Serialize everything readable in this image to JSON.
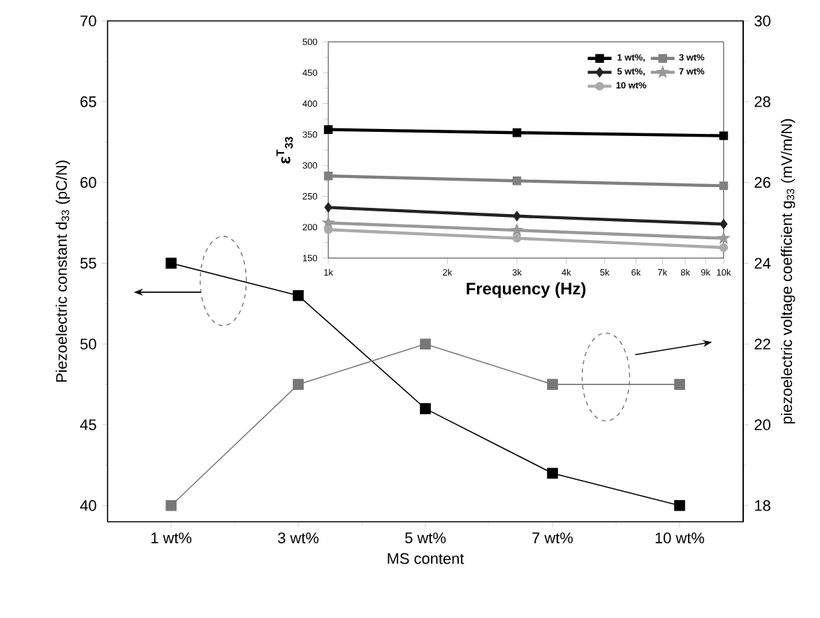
{
  "chart_data": [
    {
      "type": "line",
      "xlabel": "MS content",
      "ylabel": "Piezoelectric constant d$_{33}$ (pC/N)",
      "y2label": "piezoelectric voltage coefficient g$_{33}$ (mV/m/N)",
      "categories": [
        "1 wt%",
        "3 wt%",
        "5 wt%",
        "7 wt%",
        "10 wt%"
      ],
      "series": [
        {
          "color": "#000000",
          "values": [
            55,
            53,
            46,
            42,
            40
          ]
        },
        {
          "color": "#777777",
          "values": [
            18,
            21,
            22,
            21,
            21
          ],
          "axis": "y2"
        }
      ],
      "ylim": [
        39,
        70
      ],
      "yticks": [
        40,
        45,
        50,
        55,
        60,
        65,
        70
      ],
      "y2lim": [
        17.6,
        30
      ],
      "y2ticks": [
        18,
        20,
        22,
        24,
        26,
        28,
        30
      ],
      "marker": "square",
      "line_style": "solid",
      "legend": false
    },
    {
      "type": "line",
      "xlabel": "Frequency (Hz)",
      "ylabel": "ε$^{T}$$_{33}$",
      "log": "x",
      "x": [
        1000,
        3000,
        10000
      ],
      "series": [
        {
          "name": "1 wt%,",
          "color": "#000000",
          "marker": "square",
          "values": [
            358,
            353,
            348
          ]
        },
        {
          "name": "3 wt%",
          "color": "#808080",
          "marker": "square",
          "values": [
            283,
            275,
            267
          ]
        },
        {
          "name": "5 wt%,",
          "color": "#222222",
          "marker": "diamond",
          "values": [
            232,
            218,
            205
          ]
        },
        {
          "name": "7 wt%",
          "color": "#999999",
          "marker": "star",
          "values": [
            207,
            195,
            182
          ]
        },
        {
          "name": "10 wt%",
          "color": "#aaaaaa",
          "marker": "circle",
          "values": [
            196,
            182,
            167
          ]
        }
      ],
      "xlim": [
        1000,
        10000
      ],
      "ylim": [
        150,
        500
      ],
      "xticks": [
        {
          "value": 1000,
          "label": "1k"
        },
        {
          "value": 2000,
          "label": "2k"
        },
        {
          "value": 3000,
          "label": "3k"
        },
        {
          "value": 4000,
          "label": "4k"
        },
        {
          "value": 5000,
          "label": "5k"
        },
        {
          "value": 6000,
          "label": "6k"
        },
        {
          "value": 7000,
          "label": "7k"
        },
        {
          "value": 8000,
          "label": "8k"
        },
        {
          "value": 9000,
          "label": "9k"
        },
        {
          "value": 10000,
          "label": "10k"
        }
      ],
      "yticks": [
        150,
        200,
        250,
        300,
        350,
        400,
        450,
        500
      ],
      "legend": "top right"
    }
  ]
}
